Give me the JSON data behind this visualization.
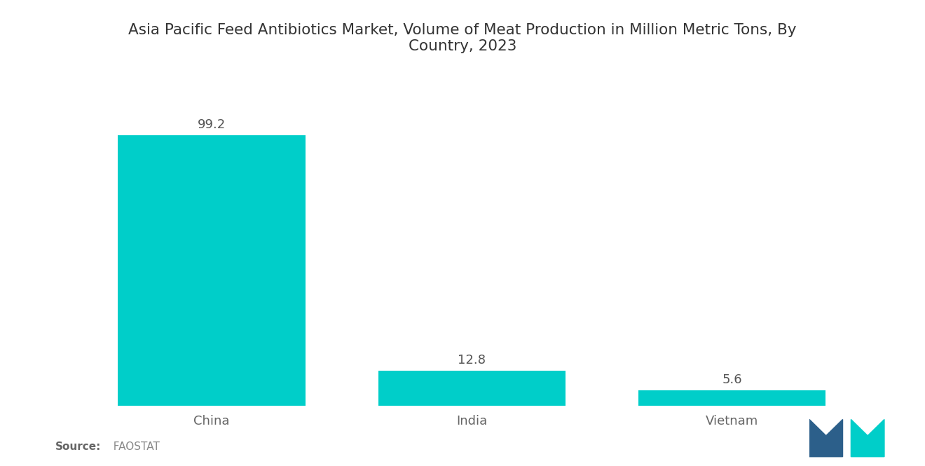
{
  "title": "Asia Pacific Feed Antibiotics Market, Volume of Meat Production in Million Metric Tons, By\nCountry, 2023",
  "categories": [
    "China",
    "India",
    "Vietnam"
  ],
  "values": [
    99.2,
    12.8,
    5.6
  ],
  "bar_color": "#00CEC9",
  "background_color": "#ffffff",
  "title_fontsize": 15.5,
  "label_fontsize": 13,
  "value_fontsize": 13,
  "source_bold": "Source:",
  "source_normal": "  FAOSTAT",
  "ylim": [
    0,
    118
  ],
  "bar_width": 0.72
}
